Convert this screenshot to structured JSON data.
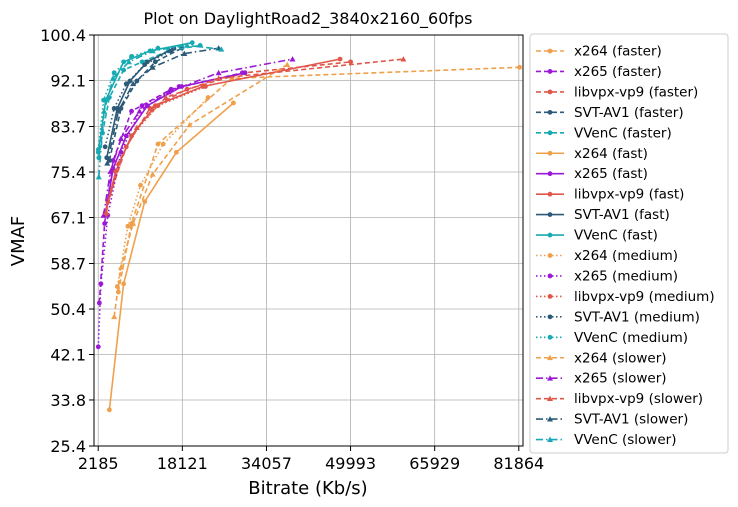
{
  "chart_data": {
    "type": "line",
    "title": "Plot on DaylightRoad2_3840x2160_60fps",
    "xlabel": "Bitrate (Kb/s)",
    "ylabel": "VMAF",
    "xlim": [
      1387,
      82661
    ],
    "ylim": [
      25.4,
      100.4
    ],
    "xticks": [
      2185,
      18121,
      34057,
      49993,
      65929,
      81864
    ],
    "xtick_labels": [
      "2185",
      "18121",
      "34057",
      "49993",
      "65929",
      "81864"
    ],
    "yticks": [
      25.4,
      33.8,
      42.1,
      50.4,
      58.7,
      67.1,
      75.4,
      83.7,
      92.1,
      100.4
    ],
    "ytick_labels": [
      "25.4",
      "33.8",
      "42.1",
      "50.4",
      "58.7",
      "67.1",
      "75.4",
      "83.7",
      "92.1",
      "100.4"
    ],
    "grid": true,
    "legend_position": "outside-right",
    "series": [
      {
        "name": "x264 (faster)",
        "color": "#f0a04b",
        "dash": "dashed",
        "marker": "circle",
        "x": [
          6000,
          8500,
          13500,
          27500,
          82000
        ],
        "y": [
          53.5,
          66,
          80.5,
          92.5,
          94.5
        ]
      },
      {
        "name": "x265 (faster)",
        "color": "#9b19d6",
        "dash": "dashed",
        "marker": "circle",
        "x": [
          2400,
          3400,
          5000,
          8500,
          16000,
          29500
        ],
        "y": [
          51.5,
          66,
          77.5,
          86.5,
          90.5,
          93.5
        ]
      },
      {
        "name": "libvpx-vp9 (faster)",
        "color": "#e0574a",
        "dash": "dashed",
        "marker": "circle",
        "x": [
          4000,
          7500,
          12000,
          19000,
          30000,
          50000
        ],
        "y": [
          70,
          80,
          87,
          90.5,
          93.5,
          95.5
        ]
      },
      {
        "name": "SVT-AV1 (faster)",
        "color": "#2c5a78",
        "dash": "dashed",
        "marker": "circle",
        "x": [
          4300,
          6500,
          9500,
          13000,
          18000
        ],
        "y": [
          77.5,
          87,
          92,
          95.5,
          98
        ]
      },
      {
        "name": "VVenC (faster)",
        "color": "#17aab3",
        "dash": "dashed",
        "marker": "circle",
        "x": [
          2300,
          3000,
          4300,
          7000,
          10500,
          15500,
          21500
        ],
        "y": [
          78,
          82.5,
          89,
          94,
          95.5,
          97.5,
          98.5
        ]
      },
      {
        "name": "x264 (fast)",
        "color": "#f0a04b",
        "dash": "solid",
        "marker": "circle",
        "x": [
          4300,
          7000,
          11000,
          17000,
          27800
        ],
        "y": [
          32,
          55,
          70,
          79,
          88
        ]
      },
      {
        "name": "x265 (fast)",
        "color": "#9b19d6",
        "dash": "solid",
        "marker": "circle",
        "x": [
          3500,
          5000,
          7500,
          11500,
          18000,
          30000
        ],
        "y": [
          67.5,
          76,
          82,
          87.5,
          91,
          93.5
        ]
      },
      {
        "name": "libvpx-vp9 (fast)",
        "color": "#e0574a",
        "dash": "solid",
        "marker": "circle",
        "x": [
          3500,
          5500,
          8500,
          13000,
          22000,
          48000
        ],
        "y": [
          68,
          75.5,
          82,
          87.5,
          91,
          96
        ]
      },
      {
        "name": "SVT-AV1 (fast)",
        "color": "#2c5a78",
        "dash": "solid",
        "marker": "circle",
        "x": [
          3800,
          5800,
          8200,
          11500,
          16500
        ],
        "y": [
          78,
          87,
          92,
          95.5,
          98
        ]
      },
      {
        "name": "VVenC (fast)",
        "color": "#17aab3",
        "dash": "solid",
        "marker": "circle",
        "x": [
          2200,
          3600,
          7000,
          12000,
          20000
        ],
        "y": [
          79,
          88.5,
          95.5,
          97.5,
          99
        ]
      },
      {
        "name": "x264 (medium)",
        "color": "#f0a04b",
        "dash": "dotted",
        "marker": "circle",
        "x": [
          5800,
          7800,
          10200,
          14500,
          23000
        ],
        "y": [
          54.5,
          65.5,
          73,
          80.5,
          89
        ]
      },
      {
        "name": "x265 (medium)",
        "color": "#9b19d6",
        "dash": "dotted",
        "marker": "circle",
        "x": [
          2200,
          2700,
          4000,
          6500,
          10500,
          17500
        ],
        "y": [
          43.5,
          55,
          67.5,
          79,
          87.5,
          91
        ]
      },
      {
        "name": "libvpx-vp9 (medium)",
        "color": "#e0574a",
        "dash": "dotted",
        "marker": "circle",
        "x": [
          3500,
          5500,
          8500,
          13500,
          22500
        ],
        "y": [
          67.5,
          75.5,
          82,
          87.5,
          91
        ]
      },
      {
        "name": "SVT-AV1 (medium)",
        "color": "#2c5a78",
        "dash": "dotted",
        "marker": "circle",
        "x": [
          3500,
          5200,
          7500,
          11000,
          16000
        ],
        "y": [
          80,
          87,
          91.5,
          95,
          97.5
        ]
      },
      {
        "name": "VVenC (medium)",
        "color": "#17aab3",
        "dash": "dotted",
        "marker": "circle",
        "x": [
          2200,
          3200,
          5200,
          8500,
          13500
        ],
        "y": [
          79.5,
          88.5,
          93.5,
          96.5,
          98
        ]
      },
      {
        "name": "x264 (slower)",
        "color": "#f0a04b",
        "dash": "dashed",
        "marker": "triangle",
        "x": [
          5200,
          6500,
          8800,
          12500,
          19500,
          38000
        ],
        "y": [
          49,
          58,
          66,
          75,
          84,
          95
        ]
      },
      {
        "name": "x265 (slower)",
        "color": "#9b19d6",
        "dash": "dashdot",
        "marker": "triangle",
        "x": [
          3200,
          4500,
          6500,
          10000,
          15500,
          25000,
          39000
        ],
        "y": [
          67.5,
          75.5,
          81.5,
          86.5,
          90,
          93.5,
          96
        ]
      },
      {
        "name": "libvpx-vp9 (slower)",
        "color": "#e0574a",
        "dash": "dashed",
        "marker": "triangle",
        "x": [
          3700,
          6000,
          9500,
          15000,
          25000,
          60000
        ],
        "y": [
          68,
          77,
          83.5,
          89,
          92.5,
          96
        ]
      },
      {
        "name": "SVT-AV1 (slower)",
        "color": "#2c5a78",
        "dash": "dashdot",
        "marker": "triangle",
        "x": [
          3900,
          6000,
          8800,
          12500,
          18500,
          25000
        ],
        "y": [
          77,
          86.5,
          91.5,
          94.5,
          97,
          98
        ]
      },
      {
        "name": "VVenC (slower)",
        "color": "#17aab3",
        "dash": "dashdot",
        "marker": "triangle",
        "x": [
          2300,
          3300,
          5000,
          8000,
          12500,
          19000,
          25500
        ],
        "y": [
          74.5,
          86.5,
          92.5,
          95.5,
          97.5,
          98.5,
          97.8
        ]
      }
    ]
  }
}
